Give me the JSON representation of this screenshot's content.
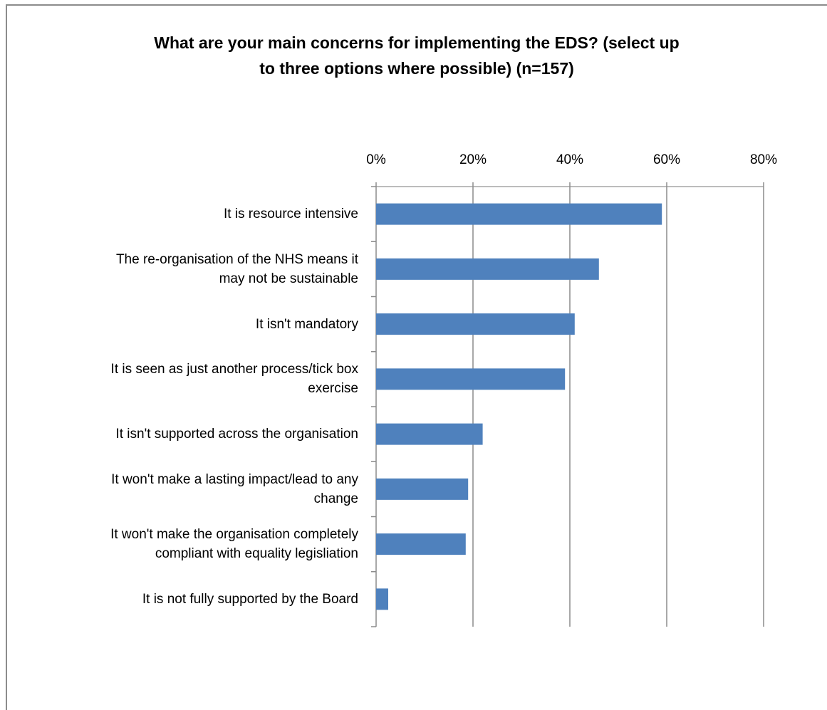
{
  "chart_data": {
    "type": "bar",
    "orientation": "horizontal",
    "title": "What are your main concerns for implementing the EDS? (select up to three options where possible) (n=157)",
    "title_lines": [
      "What are your main concerns for implementing the EDS? (select up",
      "to three options where possible) (n=157)"
    ],
    "categories": [
      "It is resource intensive",
      "The re-organisation of the NHS means it may not be sustainable",
      "It isn't mandatory",
      "It is seen as just another process/tick box exercise",
      "It isn't supported across the organisation",
      "It won't make a lasting impact/lead to any change",
      "It won't make the organisation completely compliant with equality legisliation",
      "It is not fully supported by the Board"
    ],
    "category_lines": [
      [
        "It is resource intensive"
      ],
      [
        "The re-organisation of the NHS means it",
        "may not be sustainable"
      ],
      [
        "It isn't mandatory"
      ],
      [
        "It is seen as just another process/tick box",
        "exercise"
      ],
      [
        "It isn't supported across the organisation"
      ],
      [
        "It won't make a lasting impact/lead to any",
        "change"
      ],
      [
        "It won't make the organisation completely",
        "compliant with equality legisliation"
      ],
      [
        "It is not fully supported by the Board"
      ]
    ],
    "values": [
      59,
      46,
      41,
      39,
      22,
      19,
      18.5,
      2.5
    ],
    "xlim": [
      0,
      80
    ],
    "x_ticks": [
      0,
      20,
      40,
      60,
      80
    ],
    "x_tick_labels": [
      "0%",
      "20%",
      "40%",
      "60%",
      "80%"
    ],
    "x_axis_position": "top",
    "grid": true,
    "legend": "none",
    "bar_color": "#4f81bd",
    "xlabel": "",
    "ylabel": ""
  }
}
